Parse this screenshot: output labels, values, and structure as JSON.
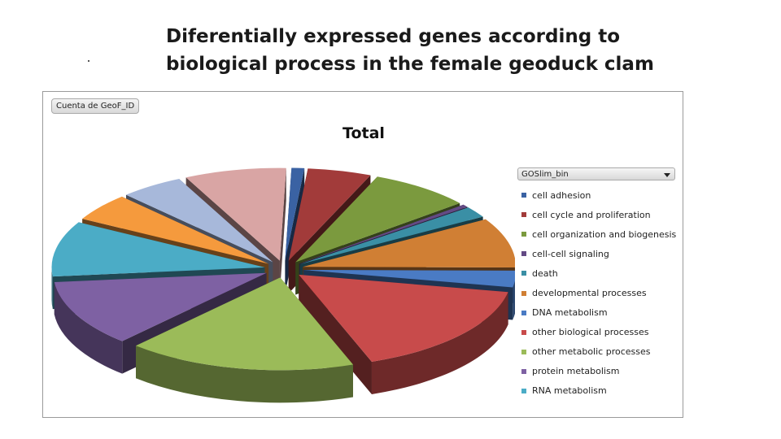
{
  "slide": {
    "title_line1": "Diferentially expressed genes according to",
    "title_line2": "biological process in the female geoduck clam"
  },
  "chart_data": {
    "type": "pie",
    "title": "Total",
    "field_button": "Cuenta de GeoF_ID",
    "legend_field": "GOSlim_bin",
    "legend_placement": "right",
    "exploded": true,
    "three_d": true,
    "categories": [
      "cell adhesion",
      "cell cycle and proliferation",
      "cell organization and biogenesis",
      "cell-cell signaling",
      "death",
      "developmental processes",
      "DNA metabolism",
      "other biological processes",
      "other metabolic processes",
      "protein metabolism",
      "RNA metabolism",
      "",
      "",
      ""
    ],
    "values": [
      1,
      5,
      8,
      0.5,
      2,
      9,
      3,
      17,
      18,
      12,
      10,
      5,
      5,
      8
    ],
    "colors": [
      "#3a62a3",
      "#a23b3a",
      "#7b9a3e",
      "#634a84",
      "#3a8fa5",
      "#d07f34",
      "#4a7bc4",
      "#c84b4b",
      "#9bbb59",
      "#7e61a3",
      "#4bacc6",
      "#f59a3d",
      "#a7b8da",
      "#d9a5a4"
    ]
  }
}
